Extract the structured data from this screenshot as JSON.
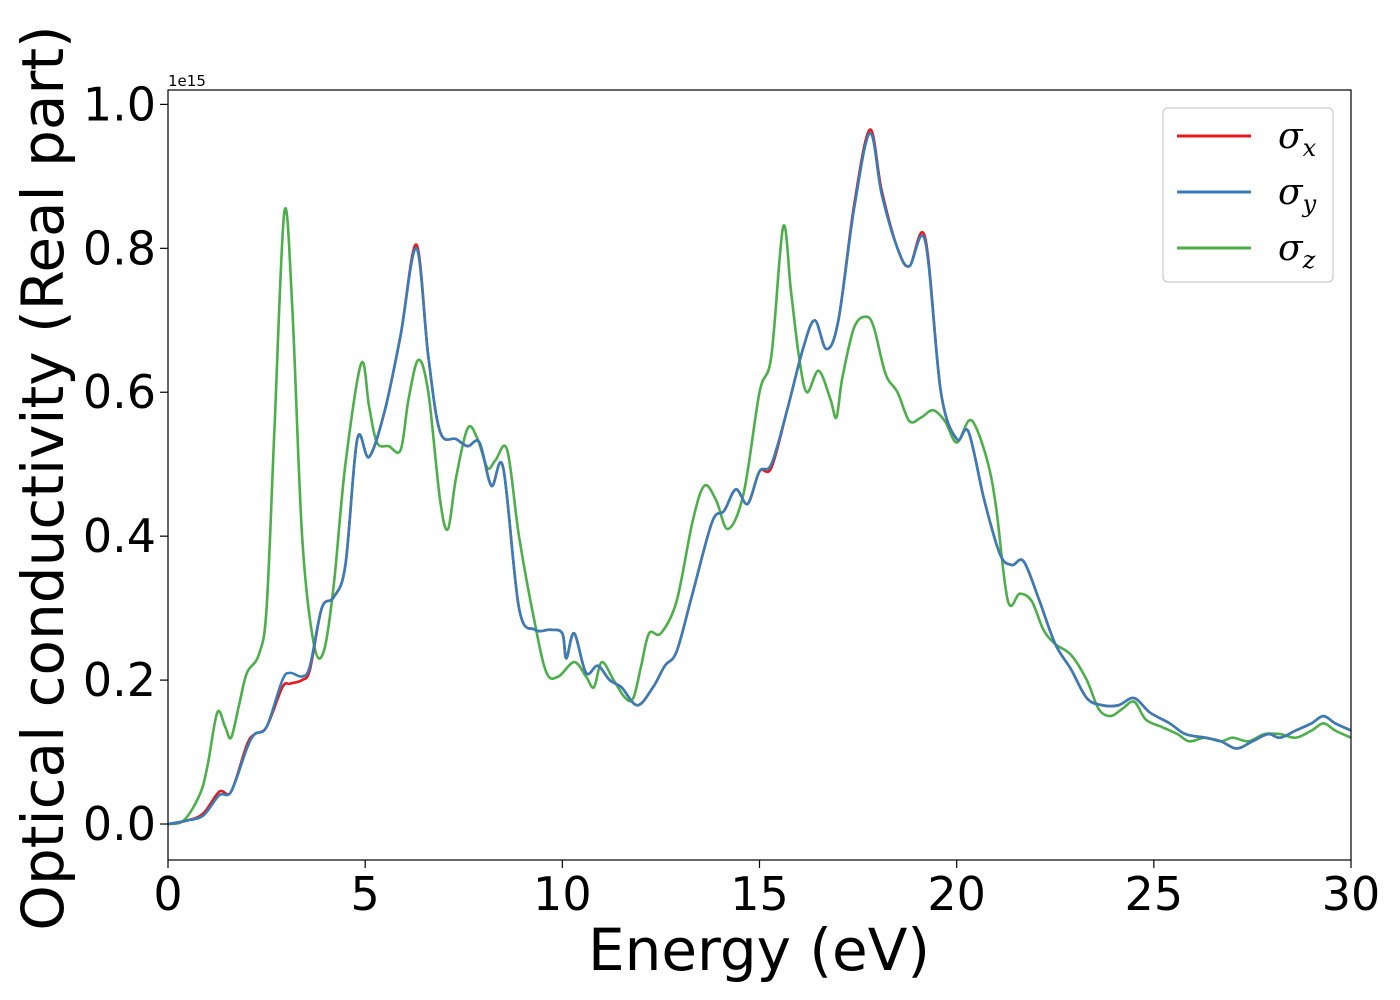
{
  "chart_data": {
    "type": "line",
    "title": "",
    "xlabel": "Energy (eV)",
    "ylabel": "Optical conductivity (Real part)",
    "y_offset_label": "1e15",
    "xlim": [
      0,
      30
    ],
    "ylim": [
      -0.05,
      1.02
    ],
    "x_ticks": [
      0,
      5,
      10,
      15,
      20,
      25,
      30
    ],
    "x_tick_labels": [
      "0",
      "5",
      "10",
      "15",
      "20",
      "25",
      "30"
    ],
    "y_ticks": [
      0.0,
      0.2,
      0.4,
      0.6,
      0.8,
      1.0
    ],
    "y_tick_labels": [
      "0.0",
      "0.2",
      "0.4",
      "0.6",
      "0.8",
      "1.0"
    ],
    "grid": false,
    "legend_position": "top-right",
    "series": [
      {
        "name": "σx",
        "legend_symbol": "σ",
        "legend_subscript": "x",
        "color": "#e41a1c",
        "points": [
          [
            0,
            0.0
          ],
          [
            0.5,
            0.005
          ],
          [
            0.9,
            0.015
          ],
          [
            1.3,
            0.045
          ],
          [
            1.6,
            0.045
          ],
          [
            2.0,
            0.11
          ],
          [
            2.2,
            0.125
          ],
          [
            2.5,
            0.135
          ],
          [
            2.9,
            0.19
          ],
          [
            3.1,
            0.195
          ],
          [
            3.4,
            0.2
          ],
          [
            3.6,
            0.215
          ],
          [
            3.9,
            0.3
          ],
          [
            4.2,
            0.315
          ],
          [
            4.5,
            0.36
          ],
          [
            4.8,
            0.535
          ],
          [
            5.1,
            0.51
          ],
          [
            5.5,
            0.575
          ],
          [
            5.9,
            0.68
          ],
          [
            6.3,
            0.805
          ],
          [
            6.6,
            0.65
          ],
          [
            6.9,
            0.545
          ],
          [
            7.3,
            0.535
          ],
          [
            7.6,
            0.525
          ],
          [
            7.9,
            0.53
          ],
          [
            8.2,
            0.47
          ],
          [
            8.5,
            0.495
          ],
          [
            8.9,
            0.3
          ],
          [
            9.3,
            0.27
          ],
          [
            9.7,
            0.27
          ],
          [
            10.0,
            0.265
          ],
          [
            10.1,
            0.23
          ],
          [
            10.3,
            0.265
          ],
          [
            10.6,
            0.21
          ],
          [
            10.9,
            0.22
          ],
          [
            11.2,
            0.2
          ],
          [
            11.5,
            0.19
          ],
          [
            11.9,
            0.165
          ],
          [
            12.3,
            0.19
          ],
          [
            12.6,
            0.22
          ],
          [
            12.9,
            0.24
          ],
          [
            13.3,
            0.32
          ],
          [
            13.8,
            0.42
          ],
          [
            14.1,
            0.435
          ],
          [
            14.4,
            0.465
          ],
          [
            14.7,
            0.445
          ],
          [
            15.0,
            0.49
          ],
          [
            15.3,
            0.495
          ],
          [
            15.7,
            0.575
          ],
          [
            16.1,
            0.66
          ],
          [
            16.4,
            0.7
          ],
          [
            16.7,
            0.66
          ],
          [
            17.0,
            0.7
          ],
          [
            17.4,
            0.86
          ],
          [
            17.8,
            0.965
          ],
          [
            18.1,
            0.88
          ],
          [
            18.5,
            0.8
          ],
          [
            18.8,
            0.775
          ],
          [
            19.2,
            0.815
          ],
          [
            19.6,
            0.6
          ],
          [
            20.0,
            0.535
          ],
          [
            20.3,
            0.545
          ],
          [
            20.7,
            0.45
          ],
          [
            21.1,
            0.375
          ],
          [
            21.4,
            0.36
          ],
          [
            21.7,
            0.365
          ],
          [
            22.1,
            0.31
          ],
          [
            22.5,
            0.25
          ],
          [
            22.9,
            0.215
          ],
          [
            23.3,
            0.175
          ],
          [
            23.7,
            0.165
          ],
          [
            24.1,
            0.165
          ],
          [
            24.5,
            0.175
          ],
          [
            24.9,
            0.155
          ],
          [
            25.4,
            0.14
          ],
          [
            25.8,
            0.125
          ],
          [
            26.3,
            0.12
          ],
          [
            26.7,
            0.115
          ],
          [
            27.1,
            0.105
          ],
          [
            27.5,
            0.115
          ],
          [
            27.9,
            0.125
          ],
          [
            28.2,
            0.12
          ],
          [
            28.6,
            0.13
          ],
          [
            29.0,
            0.14
          ],
          [
            29.3,
            0.15
          ],
          [
            29.6,
            0.14
          ],
          [
            30.0,
            0.13
          ]
        ]
      },
      {
        "name": "σy",
        "legend_symbol": "σ",
        "legend_subscript": "y",
        "color": "#377eb8",
        "points": [
          [
            0,
            0.0
          ],
          [
            0.5,
            0.005
          ],
          [
            0.9,
            0.012
          ],
          [
            1.3,
            0.04
          ],
          [
            1.6,
            0.045
          ],
          [
            2.0,
            0.105
          ],
          [
            2.2,
            0.125
          ],
          [
            2.5,
            0.135
          ],
          [
            2.9,
            0.2
          ],
          [
            3.1,
            0.21
          ],
          [
            3.4,
            0.205
          ],
          [
            3.6,
            0.22
          ],
          [
            3.9,
            0.3
          ],
          [
            4.2,
            0.315
          ],
          [
            4.5,
            0.36
          ],
          [
            4.8,
            0.535
          ],
          [
            5.1,
            0.51
          ],
          [
            5.5,
            0.575
          ],
          [
            5.9,
            0.68
          ],
          [
            6.3,
            0.8
          ],
          [
            6.6,
            0.65
          ],
          [
            6.9,
            0.545
          ],
          [
            7.3,
            0.535
          ],
          [
            7.6,
            0.525
          ],
          [
            7.9,
            0.53
          ],
          [
            8.2,
            0.47
          ],
          [
            8.5,
            0.495
          ],
          [
            8.9,
            0.3
          ],
          [
            9.3,
            0.27
          ],
          [
            9.7,
            0.27
          ],
          [
            10.0,
            0.265
          ],
          [
            10.1,
            0.23
          ],
          [
            10.3,
            0.265
          ],
          [
            10.6,
            0.21
          ],
          [
            10.9,
            0.22
          ],
          [
            11.2,
            0.2
          ],
          [
            11.5,
            0.19
          ],
          [
            11.9,
            0.165
          ],
          [
            12.3,
            0.19
          ],
          [
            12.6,
            0.22
          ],
          [
            12.9,
            0.24
          ],
          [
            13.3,
            0.32
          ],
          [
            13.8,
            0.42
          ],
          [
            14.1,
            0.435
          ],
          [
            14.4,
            0.465
          ],
          [
            14.7,
            0.445
          ],
          [
            15.0,
            0.49
          ],
          [
            15.3,
            0.5
          ],
          [
            15.7,
            0.575
          ],
          [
            16.1,
            0.66
          ],
          [
            16.4,
            0.7
          ],
          [
            16.7,
            0.66
          ],
          [
            17.0,
            0.7
          ],
          [
            17.4,
            0.855
          ],
          [
            17.8,
            0.96
          ],
          [
            18.1,
            0.875
          ],
          [
            18.5,
            0.8
          ],
          [
            18.8,
            0.775
          ],
          [
            19.2,
            0.81
          ],
          [
            19.6,
            0.6
          ],
          [
            20.0,
            0.535
          ],
          [
            20.3,
            0.545
          ],
          [
            20.7,
            0.45
          ],
          [
            21.1,
            0.375
          ],
          [
            21.4,
            0.36
          ],
          [
            21.7,
            0.365
          ],
          [
            22.1,
            0.31
          ],
          [
            22.5,
            0.25
          ],
          [
            22.9,
            0.215
          ],
          [
            23.3,
            0.175
          ],
          [
            23.7,
            0.165
          ],
          [
            24.1,
            0.165
          ],
          [
            24.5,
            0.175
          ],
          [
            24.9,
            0.155
          ],
          [
            25.4,
            0.14
          ],
          [
            25.8,
            0.125
          ],
          [
            26.3,
            0.12
          ],
          [
            26.7,
            0.115
          ],
          [
            27.1,
            0.105
          ],
          [
            27.5,
            0.115
          ],
          [
            27.9,
            0.125
          ],
          [
            28.2,
            0.12
          ],
          [
            28.6,
            0.13
          ],
          [
            29.0,
            0.14
          ],
          [
            29.3,
            0.15
          ],
          [
            29.6,
            0.14
          ],
          [
            30.0,
            0.13
          ]
        ]
      },
      {
        "name": "σz",
        "legend_symbol": "σ",
        "legend_subscript": "z",
        "color": "#4daf4a",
        "points": [
          [
            0,
            0.0
          ],
          [
            0.4,
            0.005
          ],
          [
            0.8,
            0.04
          ],
          [
            1.0,
            0.08
          ],
          [
            1.25,
            0.155
          ],
          [
            1.45,
            0.135
          ],
          [
            1.6,
            0.12
          ],
          [
            1.8,
            0.165
          ],
          [
            2.0,
            0.21
          ],
          [
            2.3,
            0.235
          ],
          [
            2.5,
            0.3
          ],
          [
            2.7,
            0.55
          ],
          [
            2.95,
            0.85
          ],
          [
            3.15,
            0.72
          ],
          [
            3.4,
            0.4
          ],
          [
            3.7,
            0.25
          ],
          [
            3.95,
            0.24
          ],
          [
            4.2,
            0.33
          ],
          [
            4.5,
            0.5
          ],
          [
            4.9,
            0.64
          ],
          [
            5.1,
            0.58
          ],
          [
            5.3,
            0.53
          ],
          [
            5.6,
            0.525
          ],
          [
            5.9,
            0.52
          ],
          [
            6.1,
            0.59
          ],
          [
            6.35,
            0.645
          ],
          [
            6.6,
            0.6
          ],
          [
            6.9,
            0.45
          ],
          [
            7.1,
            0.41
          ],
          [
            7.3,
            0.48
          ],
          [
            7.6,
            0.55
          ],
          [
            7.85,
            0.535
          ],
          [
            8.1,
            0.495
          ],
          [
            8.3,
            0.505
          ],
          [
            8.6,
            0.52
          ],
          [
            8.9,
            0.4
          ],
          [
            9.3,
            0.28
          ],
          [
            9.6,
            0.21
          ],
          [
            9.9,
            0.205
          ],
          [
            10.3,
            0.225
          ],
          [
            10.6,
            0.205
          ],
          [
            10.8,
            0.19
          ],
          [
            11.0,
            0.225
          ],
          [
            11.3,
            0.2
          ],
          [
            11.6,
            0.175
          ],
          [
            11.8,
            0.175
          ],
          [
            12.0,
            0.22
          ],
          [
            12.2,
            0.265
          ],
          [
            12.5,
            0.265
          ],
          [
            12.9,
            0.31
          ],
          [
            13.3,
            0.42
          ],
          [
            13.6,
            0.47
          ],
          [
            13.9,
            0.45
          ],
          [
            14.2,
            0.41
          ],
          [
            14.6,
            0.46
          ],
          [
            15.0,
            0.6
          ],
          [
            15.3,
            0.65
          ],
          [
            15.6,
            0.83
          ],
          [
            15.8,
            0.74
          ],
          [
            16.0,
            0.65
          ],
          [
            16.2,
            0.6
          ],
          [
            16.5,
            0.63
          ],
          [
            16.8,
            0.59
          ],
          [
            16.95,
            0.565
          ],
          [
            17.1,
            0.62
          ],
          [
            17.4,
            0.69
          ],
          [
            17.7,
            0.705
          ],
          [
            17.9,
            0.69
          ],
          [
            18.2,
            0.625
          ],
          [
            18.5,
            0.6
          ],
          [
            18.8,
            0.56
          ],
          [
            19.1,
            0.565
          ],
          [
            19.4,
            0.575
          ],
          [
            19.7,
            0.56
          ],
          [
            20.0,
            0.53
          ],
          [
            20.3,
            0.56
          ],
          [
            20.5,
            0.55
          ],
          [
            20.8,
            0.5
          ],
          [
            21.0,
            0.44
          ],
          [
            21.3,
            0.31
          ],
          [
            21.6,
            0.32
          ],
          [
            21.9,
            0.31
          ],
          [
            22.2,
            0.27
          ],
          [
            22.5,
            0.25
          ],
          [
            22.9,
            0.235
          ],
          [
            23.3,
            0.2
          ],
          [
            23.6,
            0.16
          ],
          [
            23.9,
            0.15
          ],
          [
            24.2,
            0.16
          ],
          [
            24.5,
            0.17
          ],
          [
            24.8,
            0.145
          ],
          [
            25.2,
            0.135
          ],
          [
            25.6,
            0.125
          ],
          [
            25.9,
            0.115
          ],
          [
            26.3,
            0.12
          ],
          [
            26.7,
            0.115
          ],
          [
            27.0,
            0.12
          ],
          [
            27.4,
            0.115
          ],
          [
            27.8,
            0.125
          ],
          [
            28.2,
            0.125
          ],
          [
            28.6,
            0.12
          ],
          [
            29.0,
            0.13
          ],
          [
            29.3,
            0.14
          ],
          [
            29.6,
            0.13
          ],
          [
            30.0,
            0.12
          ]
        ]
      }
    ]
  }
}
